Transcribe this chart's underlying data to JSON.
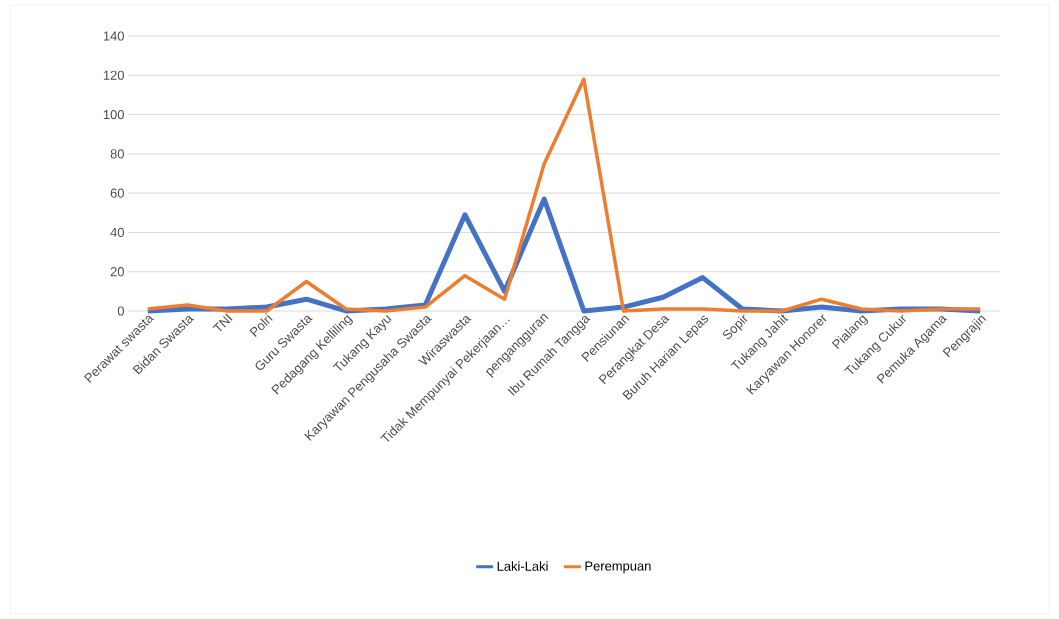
{
  "chart_data": {
    "type": "line",
    "categories": [
      "Perawat swasta",
      "Bidan Swasta",
      "TNI",
      "Polri",
      "Guru Swasta",
      "Pedagang Kelliling",
      "Tukang Kayu",
      "Karyawan Pengusaha Swasta",
      "Wiraswasta",
      "Tidak Mempunyai Pekerjaan…",
      "pengangguran",
      "Ibu Rumah Tangga",
      "Pensiunan",
      "Perangkat Desa",
      "Buruh Harian Lepas",
      "Sopir",
      "Tukang Jahit",
      "Karyawan Honorer",
      "Pialang",
      "Tukang Cukur",
      "Pemuka Agama",
      "Pengrajin"
    ],
    "series": [
      {
        "name": "Laki-Laki",
        "color": "#4472c4",
        "values": [
          0,
          1,
          1,
          2,
          6,
          0,
          1,
          3,
          49,
          10,
          57,
          0,
          2,
          7,
          17,
          1,
          0,
          2,
          0,
          1,
          1,
          0
        ]
      },
      {
        "name": "Perempuan",
        "color": "#ed7d31",
        "values": [
          1,
          3,
          0,
          0,
          15,
          1,
          0,
          2,
          18,
          6,
          75,
          118,
          0,
          1,
          1,
          0,
          0,
          6,
          1,
          0,
          1,
          1
        ]
      }
    ],
    "ylim": [
      0,
      140
    ],
    "yticks": [
      0,
      20,
      40,
      60,
      80,
      100,
      120,
      140
    ],
    "grid": "y",
    "legend": "bottom",
    "marker": "none",
    "line_style": "solid"
  }
}
